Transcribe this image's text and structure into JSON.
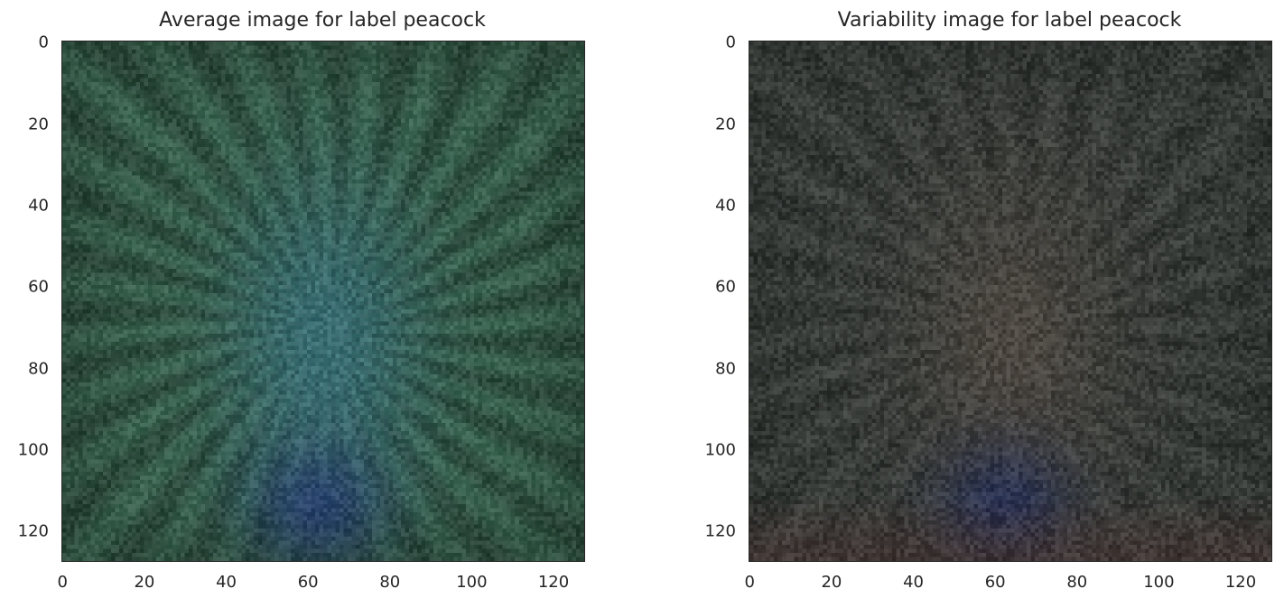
{
  "chart_data": [
    {
      "type": "heatmap",
      "title": "Average image for label peacock",
      "xlim": [
        0,
        127
      ],
      "ylim": [
        127,
        0
      ],
      "xticks": [
        0,
        20,
        40,
        60,
        80,
        100,
        120
      ],
      "yticks": [
        0,
        20,
        40,
        60,
        80,
        100,
        120
      ],
      "grid": false,
      "colors": {
        "base": "#3f6a55",
        "dark": "#1c2e24",
        "center": "#3f7f97",
        "bottom_center": "#283f72"
      }
    },
    {
      "type": "heatmap",
      "title": "Variability image for label peacock",
      "xlim": [
        0,
        127
      ],
      "ylim": [
        127,
        0
      ],
      "xticks": [
        0,
        20,
        40,
        60,
        80,
        100,
        120
      ],
      "yticks": [
        0,
        20,
        40,
        60,
        80,
        100,
        120
      ],
      "grid": false,
      "colors": {
        "base": "#404440",
        "dark": "#242826",
        "center": "#5c5048",
        "bottom_center": "#263058",
        "bottom_edge": "#5a3c3a"
      }
    }
  ]
}
